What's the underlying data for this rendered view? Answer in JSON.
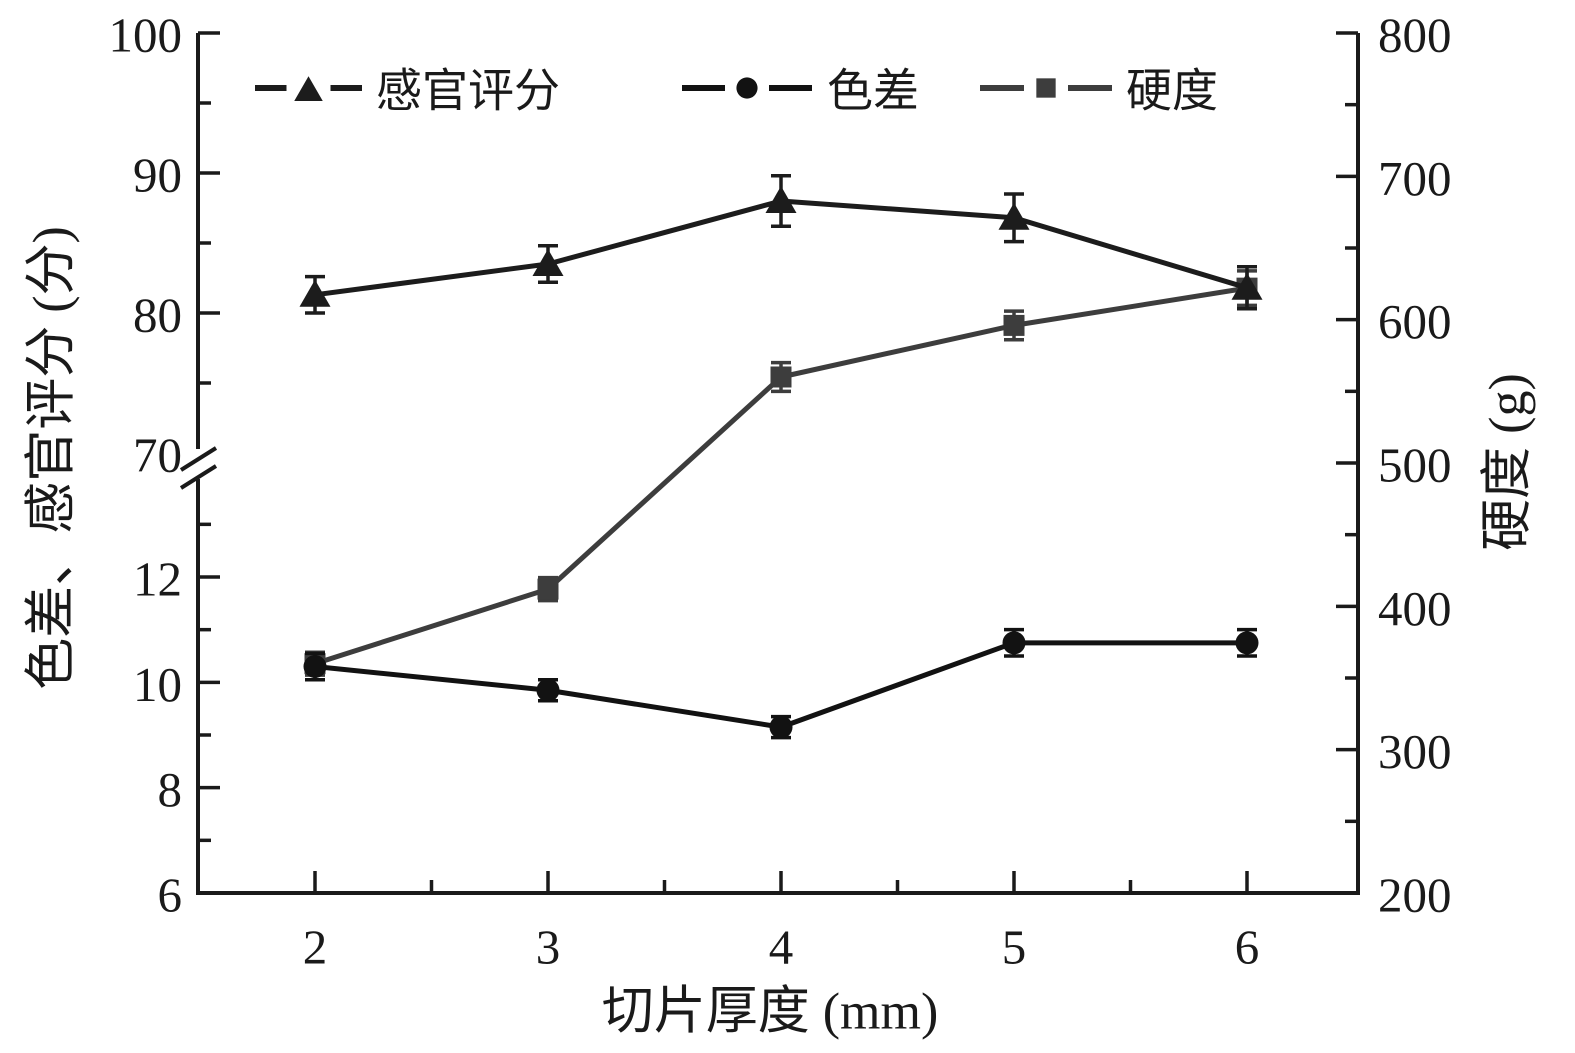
{
  "chart_data": {
    "type": "line",
    "title": "",
    "xlabel": "切片厚度 (mm)",
    "x": [
      2,
      3,
      4,
      5,
      6
    ],
    "x_ticks": [
      2,
      3,
      4,
      5,
      6
    ],
    "x_minor_ticks": [
      2.5,
      3.5,
      4.5,
      5.5
    ],
    "left_axis": {
      "label": "色差、感官评分 (分)",
      "broken": true,
      "upper_section": {
        "range": [
          70,
          100
        ],
        "ticks": [
          70,
          80,
          90,
          100
        ],
        "minor_ticks": [
          75,
          85,
          95
        ]
      },
      "lower_section": {
        "range": [
          6,
          13.5
        ],
        "ticks": [
          6,
          8,
          10,
          12
        ],
        "minor_ticks": [
          7,
          9,
          11,
          13
        ]
      }
    },
    "right_axis": {
      "label": "硬度 (g)",
      "range": [
        200,
        800
      ],
      "ticks": [
        200,
        300,
        400,
        500,
        600,
        700,
        800
      ],
      "minor_ticks": [
        250,
        350,
        450,
        550,
        650,
        750
      ]
    },
    "legend": {
      "position": "top-inside",
      "entries": [
        "感官评分",
        "色差",
        "硬度"
      ]
    },
    "series": [
      {
        "id": "hardness",
        "name": "硬度",
        "axis": "right",
        "marker": "square",
        "color": "#3d3d3d",
        "values": [
          360,
          412,
          560,
          596,
          622
        ],
        "errors": [
          8,
          8,
          10,
          10,
          12
        ]
      },
      {
        "id": "color_difference",
        "name": "色差",
        "axis": "left_lower",
        "marker": "circle",
        "color": "#121212",
        "values": [
          10.3,
          9.85,
          9.15,
          10.75,
          10.75
        ],
        "errors": [
          0.25,
          0.2,
          0.2,
          0.25,
          0.25
        ]
      },
      {
        "id": "sensory_score",
        "name": "感官评分",
        "axis": "left_upper",
        "marker": "triangle",
        "color": "#1c1c1c",
        "values": [
          81.3,
          83.5,
          88.0,
          86.8,
          81.8
        ],
        "errors": [
          1.3,
          1.3,
          1.8,
          1.7,
          1.5
        ]
      }
    ]
  }
}
